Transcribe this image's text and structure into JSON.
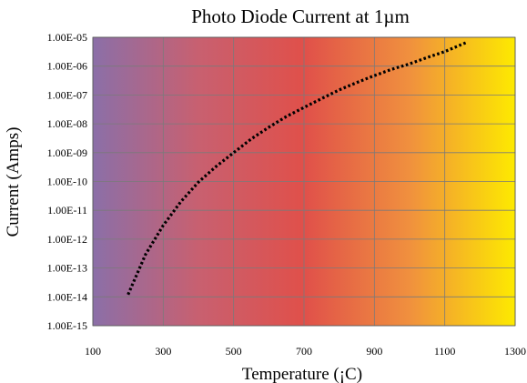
{
  "chart_data": {
    "type": "line",
    "title": "Photo Diode Current at 1µm",
    "xlabel": "Temperature (¡C)",
    "ylabel": "Current (Amps)",
    "xlim": [
      100,
      1300
    ],
    "x_ticks": [
      100,
      300,
      500,
      700,
      900,
      1100,
      1300
    ],
    "x_tick_labels": [
      "100",
      "300",
      "500",
      "700",
      "900",
      "1100",
      "1300"
    ],
    "y_scale": "log",
    "ylim": [
      1e-15,
      1e-05
    ],
    "y_ticks": [
      1e-15,
      1e-14,
      1e-13,
      1e-12,
      1e-11,
      1e-10,
      1e-09,
      1e-08,
      1e-07,
      1e-06,
      1e-05
    ],
    "y_tick_labels": [
      "1.00E-15",
      "1.00E-14",
      "1.00E-13",
      "1.00E-12",
      "1.00E-11",
      "1.00E-10",
      "1.00E-09",
      "1.00E-08",
      "1.00E-07",
      "1.00E-06",
      "1.00E-05"
    ],
    "grid": true,
    "legend": "none",
    "background_gradient": [
      "#8b6fa8",
      "#c86070",
      "#e0504a",
      "#f0903e",
      "#fdea00"
    ],
    "gridline_color": "#7a7a7a",
    "series": [
      {
        "line_style": "dotted",
        "color": "#000000",
        "x": [
          200,
          250,
          300,
          350,
          400,
          450,
          500,
          550,
          600,
          650,
          700,
          750,
          800,
          850,
          900,
          950,
          1000,
          1050,
          1100,
          1160
        ],
        "y": [
          1.2e-14,
          3e-13,
          3e-12,
          2e-11,
          9.5e-11,
          3.3e-10,
          1e-09,
          3e-09,
          7.6e-09,
          1.8e-08,
          3.7e-08,
          7.5e-08,
          1.5e-07,
          2.7e-07,
          4.7e-07,
          7.8e-07,
          1.2e-06,
          2e-06,
          3.2e-06,
          6.5e-06
        ]
      }
    ]
  }
}
